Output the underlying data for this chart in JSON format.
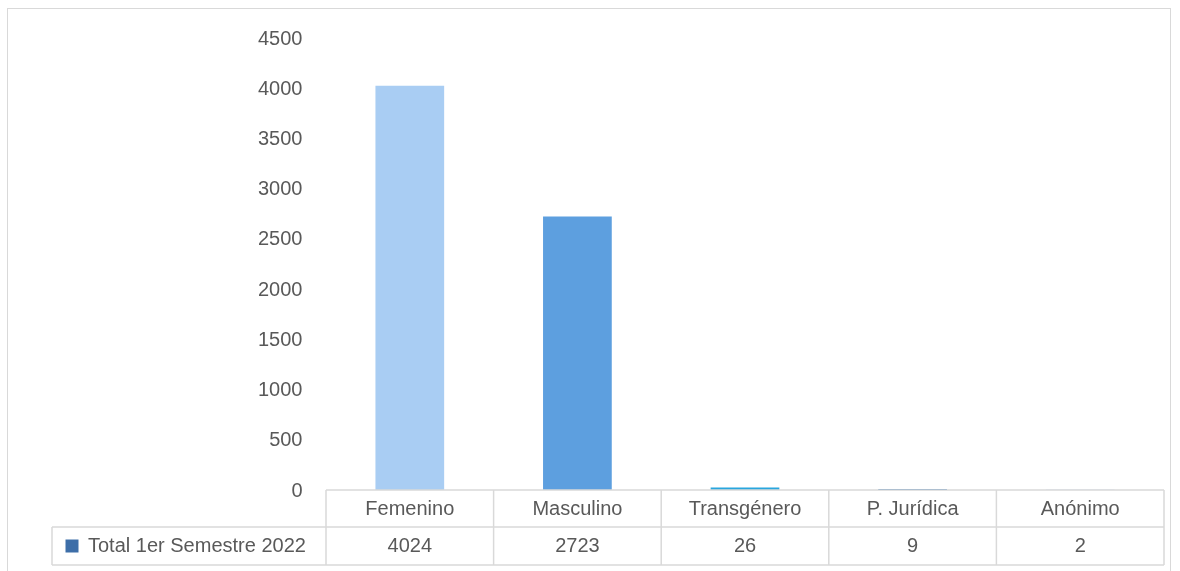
{
  "chart_data": {
    "type": "bar",
    "categories": [
      "Femenino",
      "Masculino",
      "Transgénero",
      "P. Jurídica",
      "Anónimo"
    ],
    "series": [
      {
        "name": "Total 1er Semestre 2022",
        "color": "#3d6ea8",
        "colors": [
          "#a9cdf3",
          "#5d9fdf",
          "#29a6de",
          "#2e75b6",
          "#9dc3e6"
        ],
        "values": [
          4024,
          2723,
          26,
          9,
          2
        ]
      }
    ],
    "ylim": [
      0,
      4500
    ],
    "yticks": [
      0,
      500,
      1000,
      1500,
      2000,
      2500,
      3000,
      3500,
      4000,
      4500
    ],
    "data_labels": true,
    "legend": "bottom left"
  }
}
